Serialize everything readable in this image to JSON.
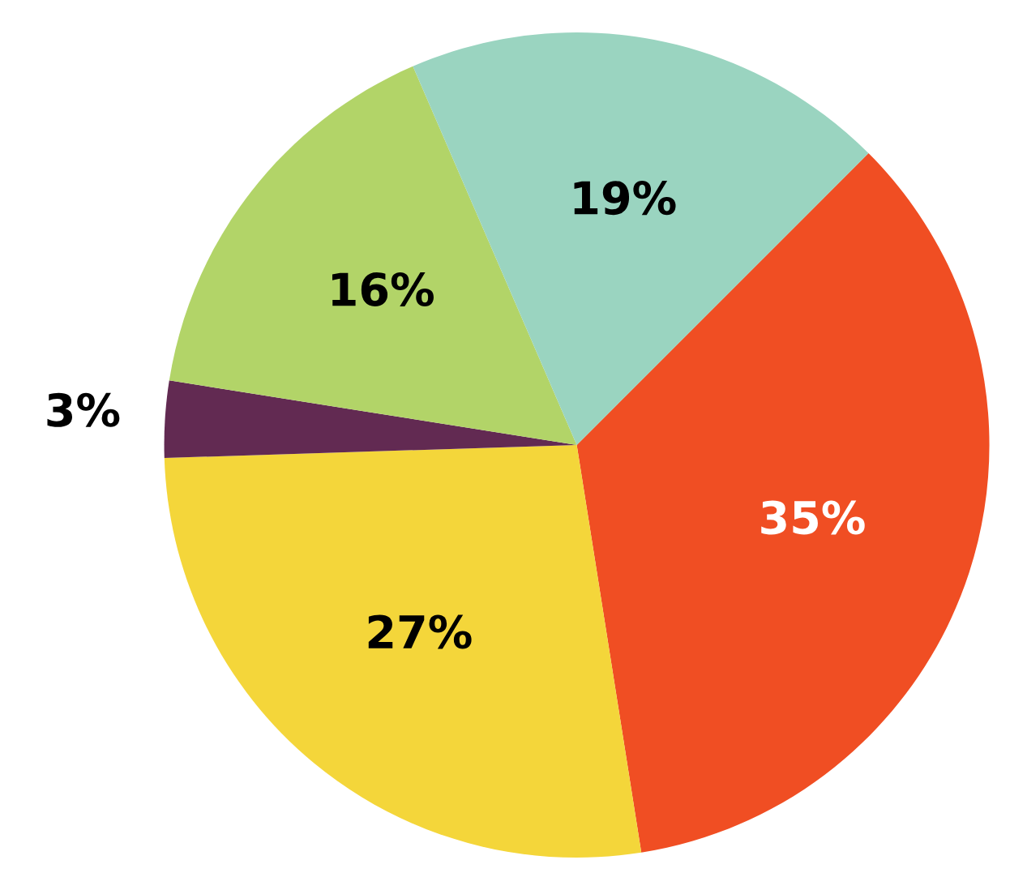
{
  "chart_data": {
    "type": "pie",
    "categories": [
      null,
      null,
      null,
      null,
      null
    ],
    "values": [
      35,
      27,
      3,
      16,
      19
    ],
    "value_labels": [
      "35%",
      "27%",
      "3%",
      "16%",
      "19%"
    ],
    "colors": [
      "#f04e23",
      "#f4d63a",
      "#622a52",
      "#b2d468",
      "#9ad4c0"
    ]
  }
}
